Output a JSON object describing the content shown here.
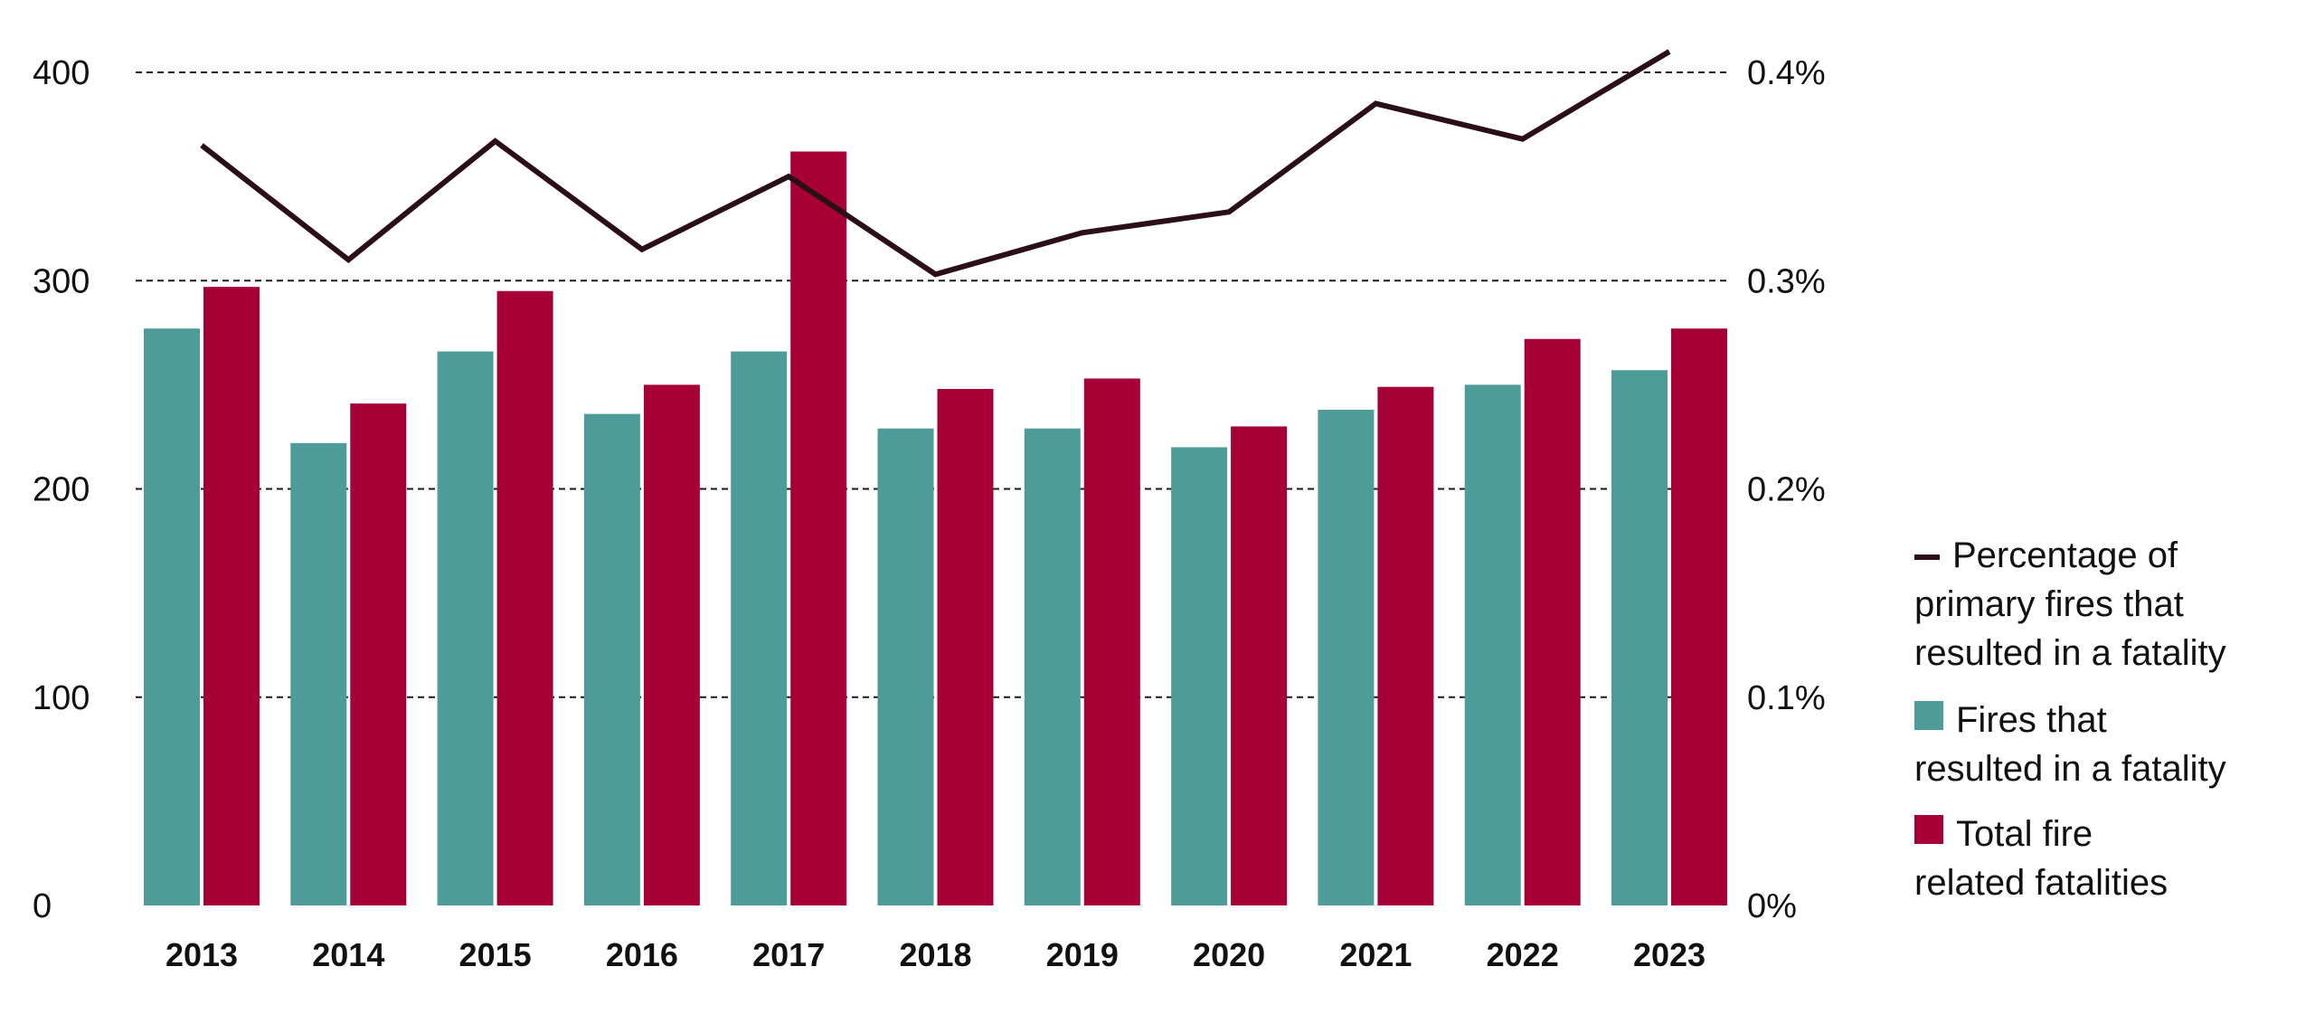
{
  "chart_data": {
    "type": "bar",
    "categories": [
      "2013",
      "2014",
      "2015",
      "2016",
      "2017",
      "2018",
      "2019",
      "2020",
      "2021",
      "2022",
      "2023"
    ],
    "series": [
      {
        "name": "Fires that resulted in a fatality",
        "type": "bar",
        "axis": "left",
        "color": "#4e9c99",
        "values": [
          277,
          222,
          266,
          236,
          266,
          229,
          229,
          220,
          238,
          250,
          257
        ]
      },
      {
        "name": "Total fire related fatalities",
        "type": "bar",
        "axis": "left",
        "color": "#a70037",
        "values": [
          297,
          241,
          295,
          250,
          362,
          248,
          253,
          230,
          249,
          272,
          277
        ]
      },
      {
        "name": "Percentage of primary fires that resulted in a fatality",
        "type": "line",
        "axis": "right",
        "color": "#2a1016",
        "values": [
          0.365,
          0.31,
          0.367,
          0.315,
          0.35,
          0.303,
          0.323,
          0.333,
          0.385,
          0.368,
          0.41
        ]
      }
    ],
    "y_left": {
      "ticks": [
        0,
        100,
        200,
        300,
        400
      ],
      "tick_labels": [
        "0",
        "100",
        "200",
        "300",
        "400"
      ],
      "ylim": [
        0,
        400
      ]
    },
    "y_right": {
      "ticks": [
        0,
        0.1,
        0.2,
        0.3,
        0.4
      ],
      "tick_labels": [
        "0%",
        "0.1%",
        "0.2%",
        "0.3%",
        "0.4%"
      ],
      "ylim": [
        0,
        0.4
      ]
    },
    "grid": "dashed horizontal",
    "legend_position": "right",
    "legend": [
      {
        "symbol": "line",
        "color": "#2a1016",
        "lines": [
          "Percentage of",
          "primary fires that",
          "resulted in a fatality"
        ]
      },
      {
        "symbol": "square",
        "color": "#4e9c99",
        "lines": [
          "Fires that",
          "resulted in a fatality"
        ]
      },
      {
        "symbol": "square",
        "color": "#a70037",
        "lines": [
          "Total fire",
          "related fatalities"
        ]
      }
    ]
  }
}
